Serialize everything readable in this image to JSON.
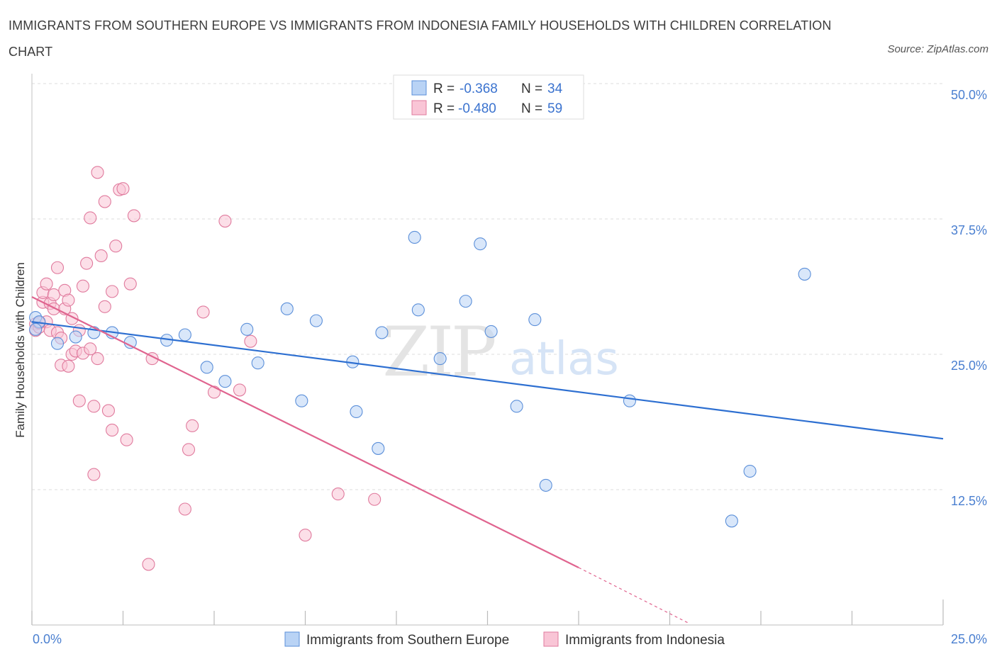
{
  "title": "IMMIGRANTS FROM SOUTHERN EUROPE VS IMMIGRANTS FROM INDONESIA FAMILY HOUSEHOLDS WITH CHILDREN CORRELATION CHART",
  "source": "Source: ZipAtlas.com",
  "watermark": {
    "zip": "ZIP",
    "atlas": "atlas"
  },
  "colors": {
    "blue_fill": "#b9d3f5",
    "blue_stroke": "#5b8fd9",
    "blue_line": "#2d6fd1",
    "pink_fill": "#f9c5d6",
    "pink_stroke": "#e07a9d",
    "pink_line": "#e0648f",
    "grid": "#dcdcdc",
    "axis_label": "#4a7fd0"
  },
  "legend": {
    "rows": [
      {
        "r_label": "R =",
        "r_value": "-0.368",
        "n_label": "N =",
        "n_value": "34",
        "color": "blue"
      },
      {
        "r_label": "R =",
        "r_value": "-0.480",
        "n_label": "N =",
        "n_value": "59",
        "color": "pink"
      }
    ]
  },
  "chart_data": {
    "type": "scatter",
    "title": "IMMIGRANTS FROM SOUTHERN EUROPE VS IMMIGRANTS FROM INDONESIA FAMILY HOUSEHOLDS WITH CHILDREN CORRELATION CHART",
    "xlabel": "",
    "ylabel": "Family Households with Children",
    "xlim": [
      0,
      25
    ],
    "ylim": [
      0,
      50
    ],
    "x_tick_labels": [
      "0.0%",
      "25.0%"
    ],
    "y_ticks": [
      12.5,
      25.0,
      37.5,
      50.0
    ],
    "y_tick_labels": [
      "12.5%",
      "25.0%",
      "37.5%",
      "50.0%"
    ],
    "grid": true,
    "legend_position": "bottom",
    "series": [
      {
        "name": "Immigrants from Southern Europe",
        "color": "blue",
        "trend": {
          "x": [
            0,
            25
          ],
          "y": [
            28.0,
            17.2
          ]
        },
        "points": [
          [
            0.1,
            28.4
          ],
          [
            0.2,
            28.0
          ],
          [
            0.1,
            27.3
          ],
          [
            0.7,
            26.0
          ],
          [
            1.2,
            26.6
          ],
          [
            1.7,
            27.0
          ],
          [
            2.2,
            27.0
          ],
          [
            2.7,
            26.1
          ],
          [
            3.7,
            26.3
          ],
          [
            4.2,
            26.8
          ],
          [
            4.8,
            23.8
          ],
          [
            5.3,
            22.5
          ],
          [
            5.9,
            27.3
          ],
          [
            6.2,
            24.2
          ],
          [
            7.0,
            29.2
          ],
          [
            7.4,
            20.7
          ],
          [
            7.8,
            28.1
          ],
          [
            8.8,
            24.3
          ],
          [
            8.9,
            19.7
          ],
          [
            9.5,
            16.3
          ],
          [
            9.6,
            27.0
          ],
          [
            10.5,
            35.8
          ],
          [
            10.6,
            29.1
          ],
          [
            11.2,
            24.6
          ],
          [
            11.9,
            29.9
          ],
          [
            12.3,
            35.2
          ],
          [
            12.6,
            27.1
          ],
          [
            13.3,
            20.2
          ],
          [
            13.8,
            28.2
          ],
          [
            14.1,
            12.9
          ],
          [
            16.4,
            20.7
          ],
          [
            19.2,
            9.6
          ],
          [
            19.7,
            14.2
          ],
          [
            21.2,
            32.4
          ]
        ]
      },
      {
        "name": "Immigrants from Indonesia",
        "color": "pink",
        "trend": {
          "x": [
            0,
            15
          ],
          "y": [
            30.3,
            5.3
          ]
        },
        "trend_extension": {
          "x": [
            15,
            18
          ],
          "y": [
            5.3,
            0.2
          ]
        },
        "points": [
          [
            0.1,
            27.8
          ],
          [
            0.1,
            27.2
          ],
          [
            0.2,
            27.5
          ],
          [
            0.3,
            29.8
          ],
          [
            0.3,
            30.7
          ],
          [
            0.4,
            31.5
          ],
          [
            0.4,
            28.0
          ],
          [
            0.5,
            27.2
          ],
          [
            0.5,
            29.7
          ],
          [
            0.6,
            30.5
          ],
          [
            0.6,
            29.2
          ],
          [
            0.7,
            33.0
          ],
          [
            0.7,
            27.0
          ],
          [
            0.8,
            26.5
          ],
          [
            0.8,
            24.0
          ],
          [
            0.9,
            29.2
          ],
          [
            0.9,
            30.9
          ],
          [
            1.0,
            30.0
          ],
          [
            1.0,
            23.9
          ],
          [
            1.1,
            28.3
          ],
          [
            1.1,
            25.0
          ],
          [
            1.2,
            25.3
          ],
          [
            1.3,
            27.2
          ],
          [
            1.3,
            20.7
          ],
          [
            1.4,
            31.3
          ],
          [
            1.4,
            25.1
          ],
          [
            1.5,
            33.4
          ],
          [
            1.6,
            25.5
          ],
          [
            1.6,
            37.6
          ],
          [
            1.7,
            20.2
          ],
          [
            1.7,
            13.9
          ],
          [
            1.8,
            24.6
          ],
          [
            1.8,
            41.8
          ],
          [
            1.9,
            34.1
          ],
          [
            2.0,
            39.1
          ],
          [
            2.0,
            29.4
          ],
          [
            2.1,
            19.8
          ],
          [
            2.2,
            18.0
          ],
          [
            2.2,
            30.8
          ],
          [
            2.3,
            35.0
          ],
          [
            2.4,
            40.2
          ],
          [
            2.5,
            40.3
          ],
          [
            2.6,
            17.1
          ],
          [
            2.7,
            31.5
          ],
          [
            2.8,
            37.8
          ],
          [
            3.2,
            5.6
          ],
          [
            3.3,
            24.6
          ],
          [
            4.2,
            10.7
          ],
          [
            4.3,
            16.2
          ],
          [
            4.4,
            18.4
          ],
          [
            4.7,
            28.9
          ],
          [
            5.0,
            21.5
          ],
          [
            5.3,
            37.3
          ],
          [
            5.7,
            21.7
          ],
          [
            6.0,
            26.2
          ],
          [
            7.5,
            8.3
          ],
          [
            8.4,
            12.1
          ],
          [
            9.4,
            11.6
          ],
          [
            0.2,
            27.9
          ]
        ]
      }
    ]
  }
}
